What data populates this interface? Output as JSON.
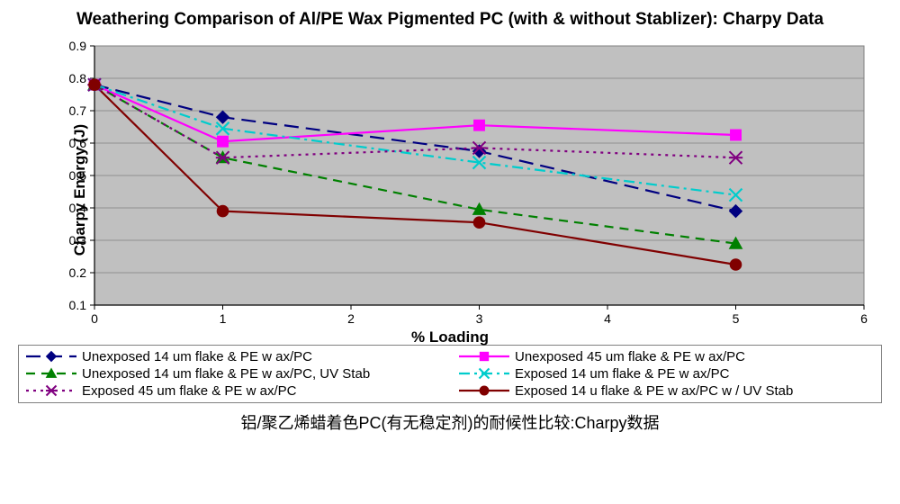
{
  "chart": {
    "type": "line",
    "title": "Weathering Comparison of Al/PE Wax Pigmented PC (with & without Stablizer):  Charpy Data",
    "xlabel": "% Loading",
    "ylabel": "Charpy Energy (J)",
    "caption": "铝/聚乙烯蜡着色PC(有无稳定剂)的耐候性比较:Charpy数据",
    "xlim": [
      0,
      6
    ],
    "ylim": [
      0.1,
      0.9
    ],
    "xtick_step": 1,
    "ytick_step": 0.1,
    "plot_bg": "#c0c0c0",
    "grid_color": "#808080",
    "border_color": "#808080",
    "x_points": [
      0,
      1,
      3,
      5
    ],
    "series": [
      {
        "label": "Unexposed 14 um flake & PE w ax/PC",
        "color": "#000080",
        "marker": "diamond",
        "dash": "longdash",
        "y": [
          0.78,
          0.68,
          0.575,
          0.39
        ]
      },
      {
        "label": "Unexposed 45 um flake & PE w ax/PC",
        "color": "#ff00ff",
        "marker": "square",
        "dash": "solid",
        "y": [
          0.78,
          0.605,
          0.655,
          0.625
        ]
      },
      {
        "label": "Unexposed 14 um flake & PE w ax/PC, UV Stab",
        "color": "#008000",
        "marker": "triangle",
        "dash": "dash",
        "y": [
          0.78,
          0.555,
          0.395,
          0.29
        ]
      },
      {
        "label": "Exposed 14 um flake & PE w ax/PC",
        "color": "#00cccc",
        "marker": "x",
        "dash": "dashdot",
        "y": [
          0.78,
          0.645,
          0.54,
          0.44
        ]
      },
      {
        "label": "Exposed 45 um flake & PE w ax/PC",
        "color": "#800080",
        "marker": "star",
        "dash": "dot",
        "y": [
          0.78,
          0.555,
          0.585,
          0.555
        ]
      },
      {
        "label": "Exposed 14 u flake & PE w ax/PC w / UV Stab",
        "color": "#800000",
        "marker": "circle",
        "dash": "solid",
        "y": [
          0.78,
          0.39,
          0.355,
          0.225
        ]
      }
    ],
    "legend_order": [
      0,
      1,
      2,
      3,
      4,
      5
    ],
    "marker_size": 7,
    "line_width": 2.2,
    "tick_fontsize": 14,
    "label_fontsize": 17,
    "title_fontsize": 19
  }
}
